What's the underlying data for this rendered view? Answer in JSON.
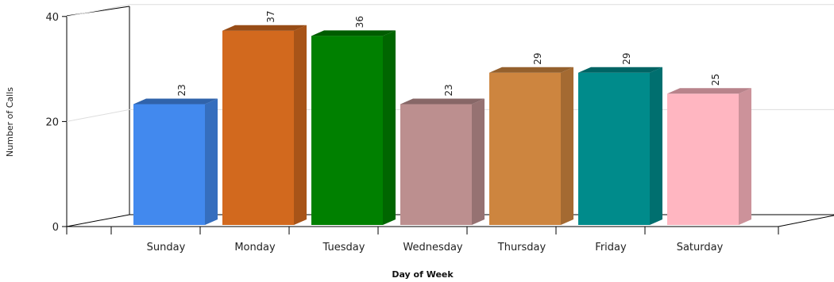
{
  "chart_data": {
    "type": "bar",
    "title": "",
    "xlabel": "Day of Week",
    "ylabel": "Number of Calls",
    "ylim": [
      0,
      40
    ],
    "yticks": [
      "0",
      "20",
      "40"
    ],
    "grid": true,
    "categories": [
      "Sunday",
      "Monday",
      "Tuesday",
      "Wednesday",
      "Thursday",
      "Friday",
      "Saturday"
    ],
    "values": [
      23,
      37,
      36,
      23,
      29,
      29,
      25
    ],
    "colors": [
      "#4289EE",
      "#D2691E",
      "#008000",
      "#BC8F8F",
      "#CD853F",
      "#008B8B",
      "#FFB6C1"
    ]
  }
}
